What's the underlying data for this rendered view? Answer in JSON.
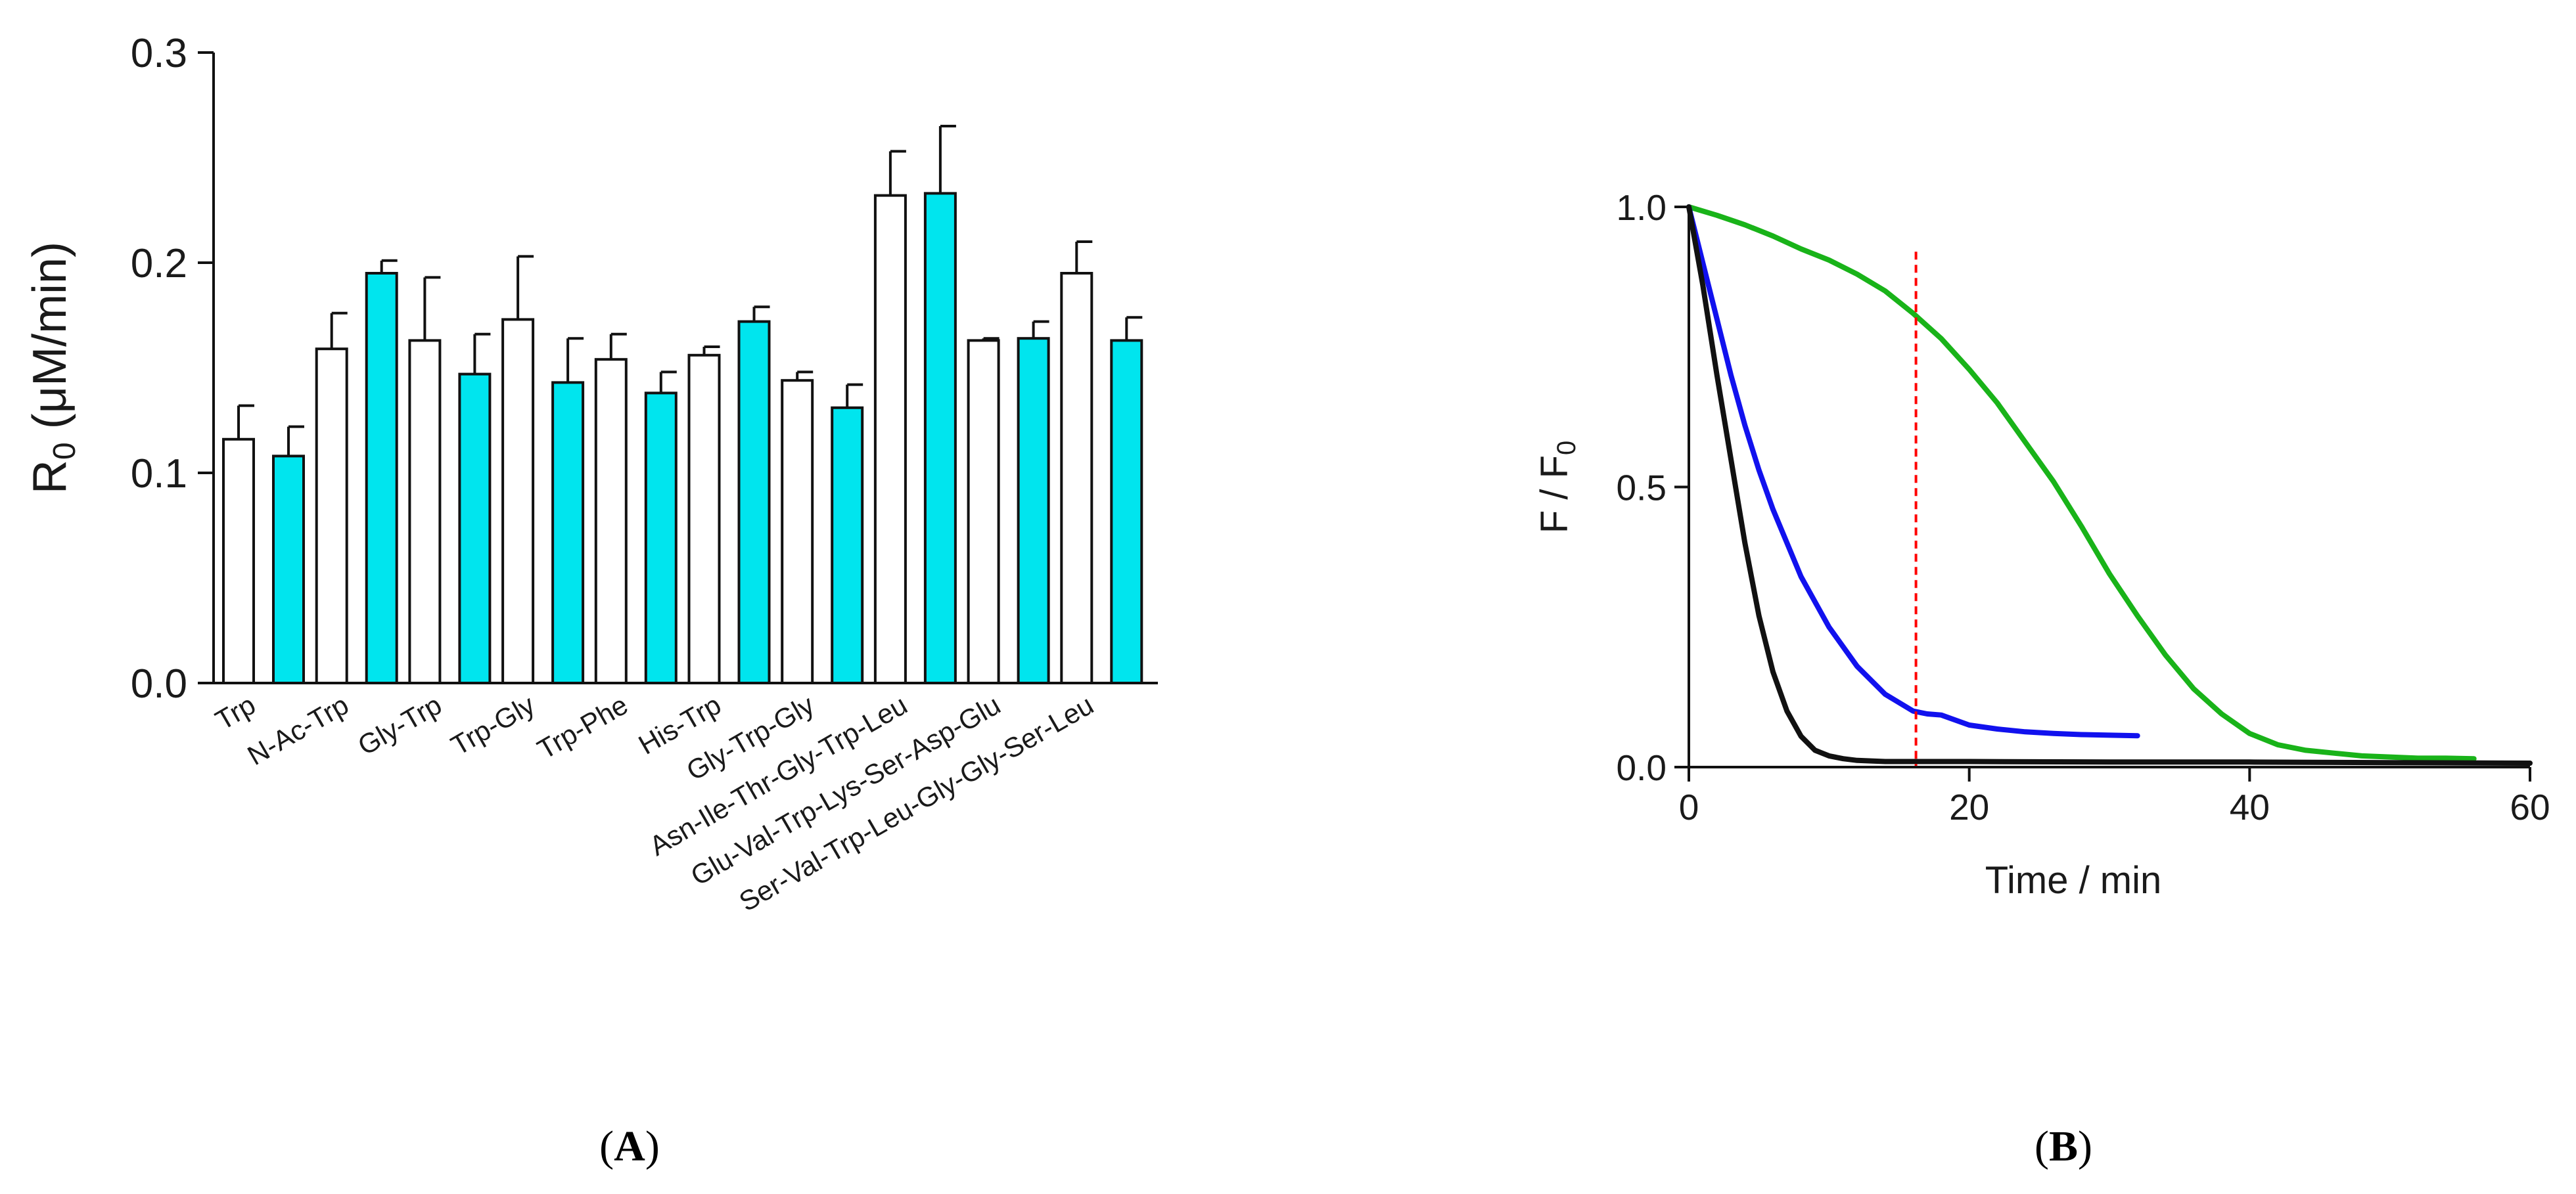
{
  "chart_data": [
    {
      "type": "bar",
      "panel_label": "(A)",
      "panel_letter": "A",
      "ylabel": {
        "main": "R",
        "sub": "0",
        "rest": " (μM/min)"
      },
      "ylim": [
        0,
        0.3
      ],
      "yticks": [
        "0.0",
        "0.1",
        "0.2",
        "0.3"
      ],
      "ytick_values": [
        0.0,
        0.1,
        0.2,
        0.3
      ],
      "categories": [
        "Trp",
        "N-Ac-Trp",
        "Gly-Trp",
        "Trp-Gly",
        "Trp-Phe",
        "His-Trp",
        "Gly-Trp-Gly",
        "Asn-Ile-Thr-Gly-Trp-Leu",
        "Glu-Val-Trp-Lys-Ser-Asp-Glu",
        "Ser-Val-Trp-Leu-Gly-Gly-Ser-Leu"
      ],
      "series": [
        {
          "name": "white",
          "color": "#ffffff",
          "values": [
            0.116,
            0.159,
            0.163,
            0.173,
            0.154,
            0.156,
            0.144,
            0.232,
            0.163,
            0.195
          ],
          "errors": [
            0.016,
            0.017,
            0.03,
            0.03,
            0.012,
            0.004,
            0.004,
            0.021,
            0.001,
            0.015
          ]
        },
        {
          "name": "cyan",
          "color": "#00e5ee",
          "values": [
            0.108,
            0.195,
            0.147,
            0.143,
            0.138,
            0.172,
            0.131,
            0.233,
            0.164,
            0.163
          ],
          "errors": [
            0.014,
            0.006,
            0.019,
            0.021,
            0.01,
            0.007,
            0.011,
            0.032,
            0.008,
            0.011
          ]
        }
      ]
    },
    {
      "type": "line",
      "panel_label": "(B)",
      "panel_letter": "B",
      "xlabel": "Time / min",
      "ylabel": {
        "main": "F / F",
        "sub": "0"
      },
      "xlim": [
        0,
        60
      ],
      "ylim": [
        0,
        1.0
      ],
      "xticks": [
        "0",
        "20",
        "40",
        "60"
      ],
      "xtick_values": [
        0,
        20,
        40,
        60
      ],
      "yticks": [
        "0.0",
        "0.5",
        "1.0"
      ],
      "ytick_values": [
        0.0,
        0.5,
        1.0
      ],
      "vline": {
        "x": 16.2,
        "y_top": 0.92,
        "color": "#ff0000",
        "style": "dashed"
      },
      "series": [
        {
          "name": "green",
          "color": "#19b319",
          "x": [
            0,
            2,
            4,
            6,
            8,
            10,
            12,
            14,
            16,
            18,
            20,
            22,
            24,
            26,
            28,
            30,
            32,
            34,
            36,
            38,
            40,
            42,
            44,
            46,
            48,
            50,
            52,
            54,
            56
          ],
          "y": [
            1.0,
            0.985,
            0.968,
            0.948,
            0.925,
            0.905,
            0.88,
            0.85,
            0.81,
            0.765,
            0.71,
            0.65,
            0.58,
            0.51,
            0.43,
            0.345,
            0.27,
            0.2,
            0.14,
            0.095,
            0.06,
            0.04,
            0.03,
            0.025,
            0.02,
            0.018,
            0.016,
            0.016,
            0.015
          ]
        },
        {
          "name": "blue",
          "color": "#1111ee",
          "x": [
            0,
            1,
            2,
            3,
            4,
            5,
            6,
            8,
            10,
            12,
            14,
            16,
            17,
            18,
            20,
            22,
            24,
            26,
            28,
            30,
            32
          ],
          "y": [
            1.0,
            0.9,
            0.8,
            0.7,
            0.61,
            0.53,
            0.46,
            0.34,
            0.25,
            0.18,
            0.13,
            0.1,
            0.095,
            0.093,
            0.075,
            0.068,
            0.063,
            0.06,
            0.058,
            0.057,
            0.056
          ]
        },
        {
          "name": "black",
          "color": "#111111",
          "x": [
            0,
            1,
            2,
            3,
            4,
            5,
            6,
            7,
            8,
            9,
            10,
            11,
            12,
            14,
            16,
            20,
            30,
            40,
            50,
            60
          ],
          "y": [
            1.0,
            0.86,
            0.7,
            0.55,
            0.4,
            0.27,
            0.17,
            0.1,
            0.055,
            0.03,
            0.02,
            0.015,
            0.012,
            0.01,
            0.01,
            0.01,
            0.009,
            0.009,
            0.008,
            0.007
          ]
        }
      ]
    }
  ]
}
